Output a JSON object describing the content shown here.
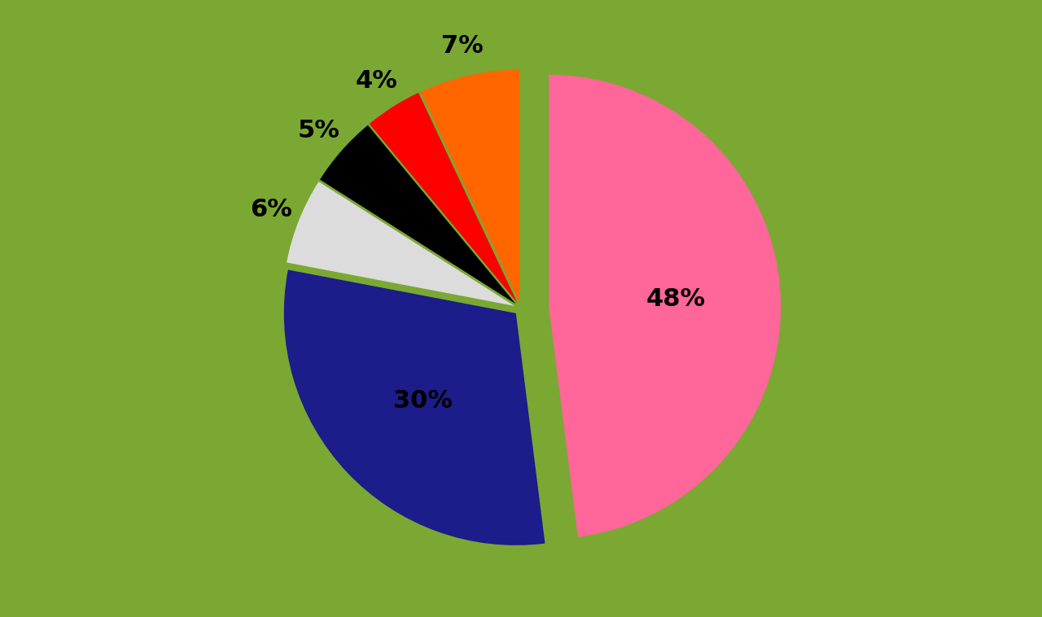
{
  "chart_data": {
    "type": "pie",
    "values": [
      48,
      30,
      6,
      5,
      4,
      7
    ],
    "value_labels": [
      "48%",
      "30%",
      "6%",
      "5%",
      "4%",
      "7%"
    ],
    "colors": [
      "#ff6699",
      "#1c1c8a",
      "#dcdcdc",
      "#000000",
      "#ff0000",
      "#ff6600"
    ],
    "data_labels": true
  }
}
